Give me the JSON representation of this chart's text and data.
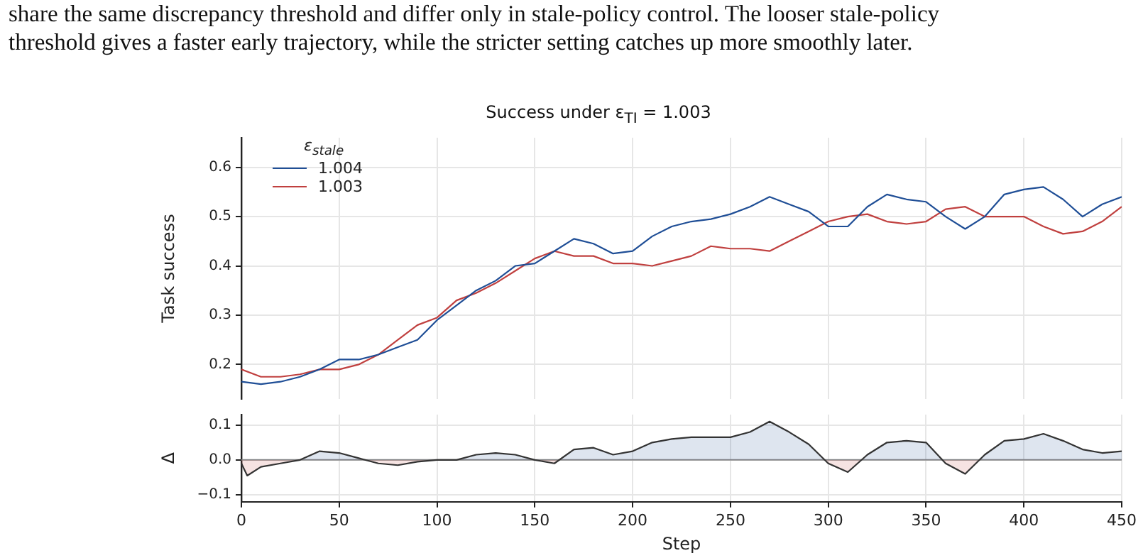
{
  "chart_data": [
    {
      "type": "line",
      "title": "Success under ε$_{TI}$ = 1.003",
      "ylabel": "Task success",
      "legend_title": "ε$_{stale}$",
      "legend": "top left",
      "grid": true,
      "tick_labels": "y",
      "annotations": [
        "share the same discrepancy threshold and differ only in stale-policy control. The looser stale-policy",
        "threshold gives a faster early trajectory, while the stricter setting catches up more smoothly later."
      ],
      "xlim": [
        0,
        450
      ],
      "xticks": [
        0,
        50,
        100,
        150,
        200,
        250,
        300,
        350,
        400,
        450
      ],
      "ylim": [
        0.13,
        0.66
      ],
      "yticks": [
        0.2,
        0.3,
        0.4,
        0.5,
        0.6
      ],
      "x": [
        0,
        10,
        20,
        30,
        40,
        50,
        60,
        70,
        80,
        90,
        100,
        110,
        120,
        130,
        140,
        150,
        160,
        170,
        180,
        190,
        200,
        210,
        220,
        230,
        240,
        250,
        260,
        270,
        280,
        290,
        300,
        310,
        320,
        330,
        340,
        350,
        360,
        370,
        380,
        390,
        400,
        410,
        420,
        430,
        440,
        450
      ],
      "series": [
        {
          "name": "1.004",
          "color": "#1f4e96",
          "values": [
            0.165,
            0.16,
            0.165,
            0.175,
            0.19,
            0.21,
            0.21,
            0.22,
            0.235,
            0.25,
            0.29,
            0.32,
            0.35,
            0.37,
            0.4,
            0.405,
            0.43,
            0.455,
            0.445,
            0.425,
            0.43,
            0.46,
            0.48,
            0.49,
            0.495,
            0.505,
            0.52,
            0.54,
            0.525,
            0.51,
            0.48,
            0.48,
            0.52,
            0.545,
            0.535,
            0.53,
            0.5,
            0.475,
            0.5,
            0.545,
            0.555,
            0.56,
            0.535,
            0.5,
            0.525,
            0.54
          ]
        },
        {
          "name": "1.003",
          "color": "#c0403f",
          "values": [
            0.19,
            0.175,
            0.175,
            0.18,
            0.19,
            0.19,
            0.2,
            0.22,
            0.25,
            0.28,
            0.295,
            0.33,
            0.345,
            0.365,
            0.39,
            0.415,
            0.43,
            0.42,
            0.42,
            0.405,
            0.405,
            0.4,
            0.41,
            0.42,
            0.44,
            0.435,
            0.435,
            0.43,
            0.45,
            0.47,
            0.49,
            0.5,
            0.505,
            0.49,
            0.485,
            0.49,
            0.515,
            0.52,
            0.5,
            0.5,
            0.5,
            0.48,
            0.465,
            0.47,
            0.49,
            0.52
          ]
        }
      ]
    },
    {
      "type": "area",
      "xlabel": "Step",
      "ylabel": "Δ",
      "grid": true,
      "xlim": [
        0,
        450
      ],
      "xticks": [
        0,
        50,
        100,
        150,
        200,
        250,
        300,
        350,
        400,
        450
      ],
      "ylim": [
        -0.12,
        0.13
      ],
      "yticks": [
        {
          "value": -0.1,
          "label": "−0.1"
        },
        {
          "value": 0,
          "label": "0.0"
        },
        0.1
      ],
      "ref_lines": [
        {
          "axis": "y",
          "value": 0,
          "color": "#888888"
        }
      ],
      "x": [
        0,
        3,
        10,
        20,
        30,
        40,
        50,
        60,
        70,
        80,
        90,
        100,
        110,
        120,
        130,
        140,
        150,
        160,
        170,
        180,
        190,
        200,
        210,
        220,
        230,
        240,
        250,
        260,
        270,
        280,
        290,
        300,
        310,
        320,
        330,
        340,
        350,
        360,
        370,
        380,
        390,
        400,
        410,
        420,
        430,
        440,
        450
      ],
      "series": [
        {
          "color": "#333333",
          "values": [
            -0.01,
            -0.045,
            -0.02,
            -0.01,
            0,
            0.025,
            0.02,
            0.005,
            -0.01,
            -0.015,
            -0.005,
            0,
            0,
            0.015,
            0.02,
            0.015,
            0,
            -0.01,
            0.03,
            0.035,
            0.015,
            0.025,
            0.05,
            0.06,
            0.065,
            0.065,
            0.065,
            0.08,
            0.11,
            0.08,
            0.045,
            -0.01,
            -0.035,
            0.015,
            0.05,
            0.055,
            0.05,
            -0.01,
            -0.04,
            0.015,
            0.055,
            0.06,
            0.075,
            0.055,
            0.03,
            0.02,
            0.025
          ]
        }
      ]
    }
  ]
}
